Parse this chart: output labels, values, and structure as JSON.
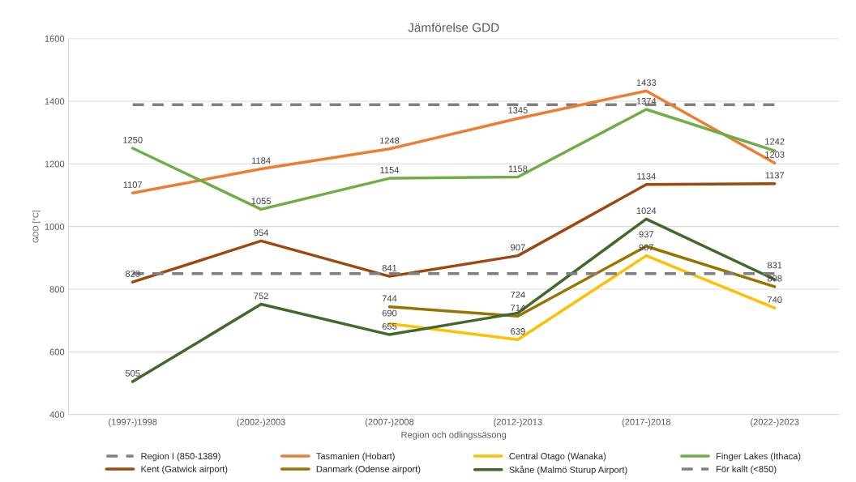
{
  "chart_data": {
    "type": "line",
    "title": "Jämförelse GDD",
    "xlabel": "Region och odlingssäsong",
    "ylabel": "GDD [°C]",
    "categories": [
      "(1997-)1998",
      "(2002-)2003",
      "(2007-)2008",
      "(2012-)2013",
      "(2017-)2018",
      "(2022-)2023"
    ],
    "series": [
      {
        "name": "Region I (850-1389)",
        "color": "#7f7f7f",
        "line_style": "dashed",
        "values": [
          1389,
          1389,
          1389,
          1389,
          1389,
          1389
        ]
      },
      {
        "name": "Tasmanien (Hobart)",
        "color": "#ed7d31",
        "values": [
          1107,
          1184,
          1248,
          1345,
          1433,
          1203
        ],
        "value_labels": [
          "1107",
          "1184",
          "1248",
          "1345",
          "1433",
          "1203"
        ]
      },
      {
        "name": "Central Otago (Wanaka)",
        "color": "#ffc000",
        "values": [
          null,
          null,
          690,
          639,
          907,
          740
        ],
        "value_labels": [
          null,
          null,
          "690",
          "639",
          "907",
          "740"
        ]
      },
      {
        "name": "Finger Lakes (Ithaca)",
        "color": "#70ad47",
        "values": [
          1250,
          1055,
          1154,
          1158,
          1374,
          1242
        ],
        "value_labels": [
          "1250",
          "1055",
          "1154",
          "1158",
          "1374",
          "1242"
        ]
      },
      {
        "name": "Kent (Gatwick airport)",
        "color": "#9e480e",
        "values": [
          823,
          954,
          841,
          907,
          1134,
          1137
        ],
        "value_labels": [
          "823",
          "954",
          "841",
          "907",
          "1134",
          "1137"
        ]
      },
      {
        "name": "Danmark (Odense airport)",
        "color": "#997300",
        "values": [
          null,
          null,
          744,
          714,
          937,
          808
        ],
        "value_labels": [
          null,
          null,
          "744",
          "714",
          "937",
          "808"
        ]
      },
      {
        "name": "Skåne (Malmö Sturup Airport)",
        "color": "#43682b",
        "values": [
          505,
          752,
          655,
          724,
          1024,
          831
        ],
        "value_labels": [
          "505",
          "752",
          "655",
          "724",
          "1024",
          "831"
        ]
      },
      {
        "name": "För kallt (<850)",
        "color": "#7f7f7f",
        "line_style": "dashed",
        "values": [
          850,
          850,
          850,
          850,
          850,
          850
        ]
      }
    ],
    "ylim": [
      400,
      1600
    ],
    "yticks": [
      400,
      600,
      800,
      1000,
      1200,
      1400,
      1600
    ],
    "grid": "y",
    "legend": "bottom"
  }
}
